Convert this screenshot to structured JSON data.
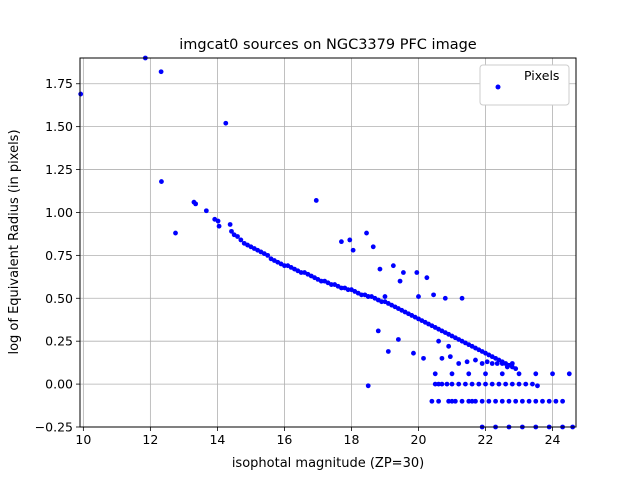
{
  "chart_data": {
    "type": "scatter",
    "title": "imgcat0 sources on NGC3379 PFC image",
    "xlabel": "isophotal magnitude (ZP=30)",
    "ylabel": "log of Equivalent Radius (in pixels)",
    "xlim": [
      9.9,
      24.7
    ],
    "ylim": [
      -0.25,
      1.9
    ],
    "xticks": [
      "10",
      "12",
      "14",
      "16",
      "18",
      "20",
      "22",
      "24"
    ],
    "yticks": [
      "−0.25",
      "0.00",
      "0.25",
      "0.50",
      "0.75",
      "1.00",
      "1.25",
      "1.50",
      "1.75"
    ],
    "xtick_values": [
      10,
      12,
      14,
      16,
      18,
      20,
      22,
      24
    ],
    "ytick_values": [
      -0.25,
      0,
      0.25,
      0.5,
      0.75,
      1.0,
      1.25,
      1.5,
      1.75
    ],
    "grid": true,
    "legend": {
      "position": "top-right",
      "entries": [
        "Pixels"
      ]
    },
    "series": [
      {
        "name": "Pixels",
        "color": "#0000ff",
        "x": [
          9.92,
          11.85,
          12.32,
          14.25,
          12.33,
          12.75,
          13.3,
          13.35,
          13.67,
          13.92,
          14.02,
          14.05,
          14.38,
          14.42,
          14.5,
          14.6,
          14.7,
          14.8,
          14.9,
          15.0,
          15.1,
          15.2,
          15.3,
          15.4,
          15.5,
          15.6,
          15.7,
          15.8,
          15.9,
          16.0,
          16.1,
          16.2,
          16.3,
          16.4,
          16.5,
          16.6,
          16.7,
          16.8,
          16.9,
          17.0,
          17.1,
          17.2,
          17.3,
          17.4,
          17.5,
          17.6,
          17.7,
          17.8,
          17.9,
          18.0,
          18.1,
          18.2,
          18.3,
          18.4,
          18.5,
          18.6,
          18.7,
          18.8,
          18.9,
          19.0,
          19.1,
          19.2,
          19.3,
          19.4,
          19.5,
          19.6,
          19.7,
          19.8,
          19.9,
          20.0,
          20.1,
          20.2,
          20.3,
          20.4,
          20.5,
          20.6,
          20.7,
          20.8,
          20.9,
          21.0,
          21.1,
          21.2,
          21.3,
          21.4,
          21.5,
          21.6,
          21.7,
          21.8,
          21.9,
          22.0,
          22.1,
          22.2,
          22.3,
          22.4,
          22.5,
          22.6,
          22.7,
          22.8,
          22.9,
          16.95,
          17.7,
          17.95,
          18.05,
          18.45,
          18.65,
          18.85,
          19.25,
          19.55,
          19.45,
          19.95,
          20.25,
          20.45,
          18.8,
          19.4,
          20.6,
          20.9,
          18.5,
          19.1,
          19.85,
          20.15,
          20.7,
          20.95,
          21.2,
          21.45,
          21.7,
          21.9,
          22.05,
          22.2,
          22.35,
          22.5,
          22.65,
          22.8,
          20.5,
          20.6,
          20.7,
          20.85,
          21.0,
          21.2,
          21.4,
          21.6,
          21.8,
          22.0,
          22.2,
          22.4,
          22.6,
          22.8,
          23.0,
          23.2,
          23.4,
          23.55,
          20.9,
          21.1,
          21.3,
          21.5,
          21.7,
          21.9,
          22.1,
          22.3,
          22.5,
          22.7,
          22.9,
          23.1,
          23.3,
          23.5,
          23.7,
          23.9,
          24.1,
          24.3,
          21.9,
          22.3,
          22.7,
          23.1,
          23.5,
          23.9,
          24.3,
          24.6,
          20.4,
          20.6,
          21.0,
          21.6,
          20.5,
          21.0,
          21.5,
          22.0,
          22.5,
          23.0,
          23.5,
          24.0,
          24.5,
          18.5,
          19.0,
          20.0,
          20.8,
          21.3
        ],
        "y": [
          1.69,
          1.9,
          1.82,
          1.52,
          1.18,
          0.88,
          1.06,
          1.05,
          1.01,
          0.96,
          0.95,
          0.92,
          0.93,
          0.89,
          0.87,
          0.86,
          0.84,
          0.82,
          0.81,
          0.8,
          0.79,
          0.78,
          0.77,
          0.76,
          0.75,
          0.73,
          0.72,
          0.71,
          0.7,
          0.69,
          0.69,
          0.68,
          0.67,
          0.66,
          0.65,
          0.65,
          0.64,
          0.63,
          0.62,
          0.61,
          0.6,
          0.6,
          0.59,
          0.58,
          0.58,
          0.57,
          0.56,
          0.56,
          0.55,
          0.55,
          0.54,
          0.53,
          0.52,
          0.52,
          0.51,
          0.51,
          0.5,
          0.49,
          0.48,
          0.48,
          0.47,
          0.46,
          0.45,
          0.44,
          0.43,
          0.42,
          0.41,
          0.4,
          0.39,
          0.38,
          0.37,
          0.36,
          0.35,
          0.34,
          0.33,
          0.32,
          0.31,
          0.3,
          0.29,
          0.28,
          0.27,
          0.26,
          0.25,
          0.24,
          0.23,
          0.22,
          0.21,
          0.2,
          0.19,
          0.18,
          0.17,
          0.16,
          0.15,
          0.14,
          0.13,
          0.12,
          0.11,
          0.1,
          0.09,
          1.07,
          0.83,
          0.84,
          0.78,
          0.88,
          0.8,
          0.67,
          0.69,
          0.65,
          0.6,
          0.65,
          0.62,
          0.52,
          0.31,
          0.26,
          0.25,
          0.22,
          -0.01,
          0.19,
          0.18,
          0.15,
          0.15,
          0.16,
          0.12,
          0.13,
          0.14,
          0.12,
          0.13,
          0.12,
          0.12,
          0.12,
          0.1,
          0.12,
          0.0,
          0.0,
          0.0,
          0.0,
          0.0,
          0.0,
          0.0,
          0.0,
          0.0,
          0.0,
          0.0,
          0.0,
          0.0,
          0.0,
          0.0,
          0.0,
          0.0,
          -0.01,
          -0.1,
          -0.1,
          -0.1,
          -0.1,
          -0.1,
          -0.1,
          -0.1,
          -0.1,
          -0.1,
          -0.1,
          -0.1,
          -0.1,
          -0.1,
          -0.1,
          -0.1,
          -0.1,
          -0.1,
          -0.1,
          -0.25,
          -0.25,
          -0.25,
          -0.25,
          -0.25,
          -0.25,
          -0.25,
          -0.25,
          -0.1,
          -0.1,
          -0.1,
          -0.1,
          0.06,
          0.06,
          0.06,
          0.06,
          0.06,
          0.06,
          0.06,
          0.06,
          0.06,
          0.51,
          0.51,
          0.51,
          0.5,
          0.5
        ]
      }
    ]
  }
}
